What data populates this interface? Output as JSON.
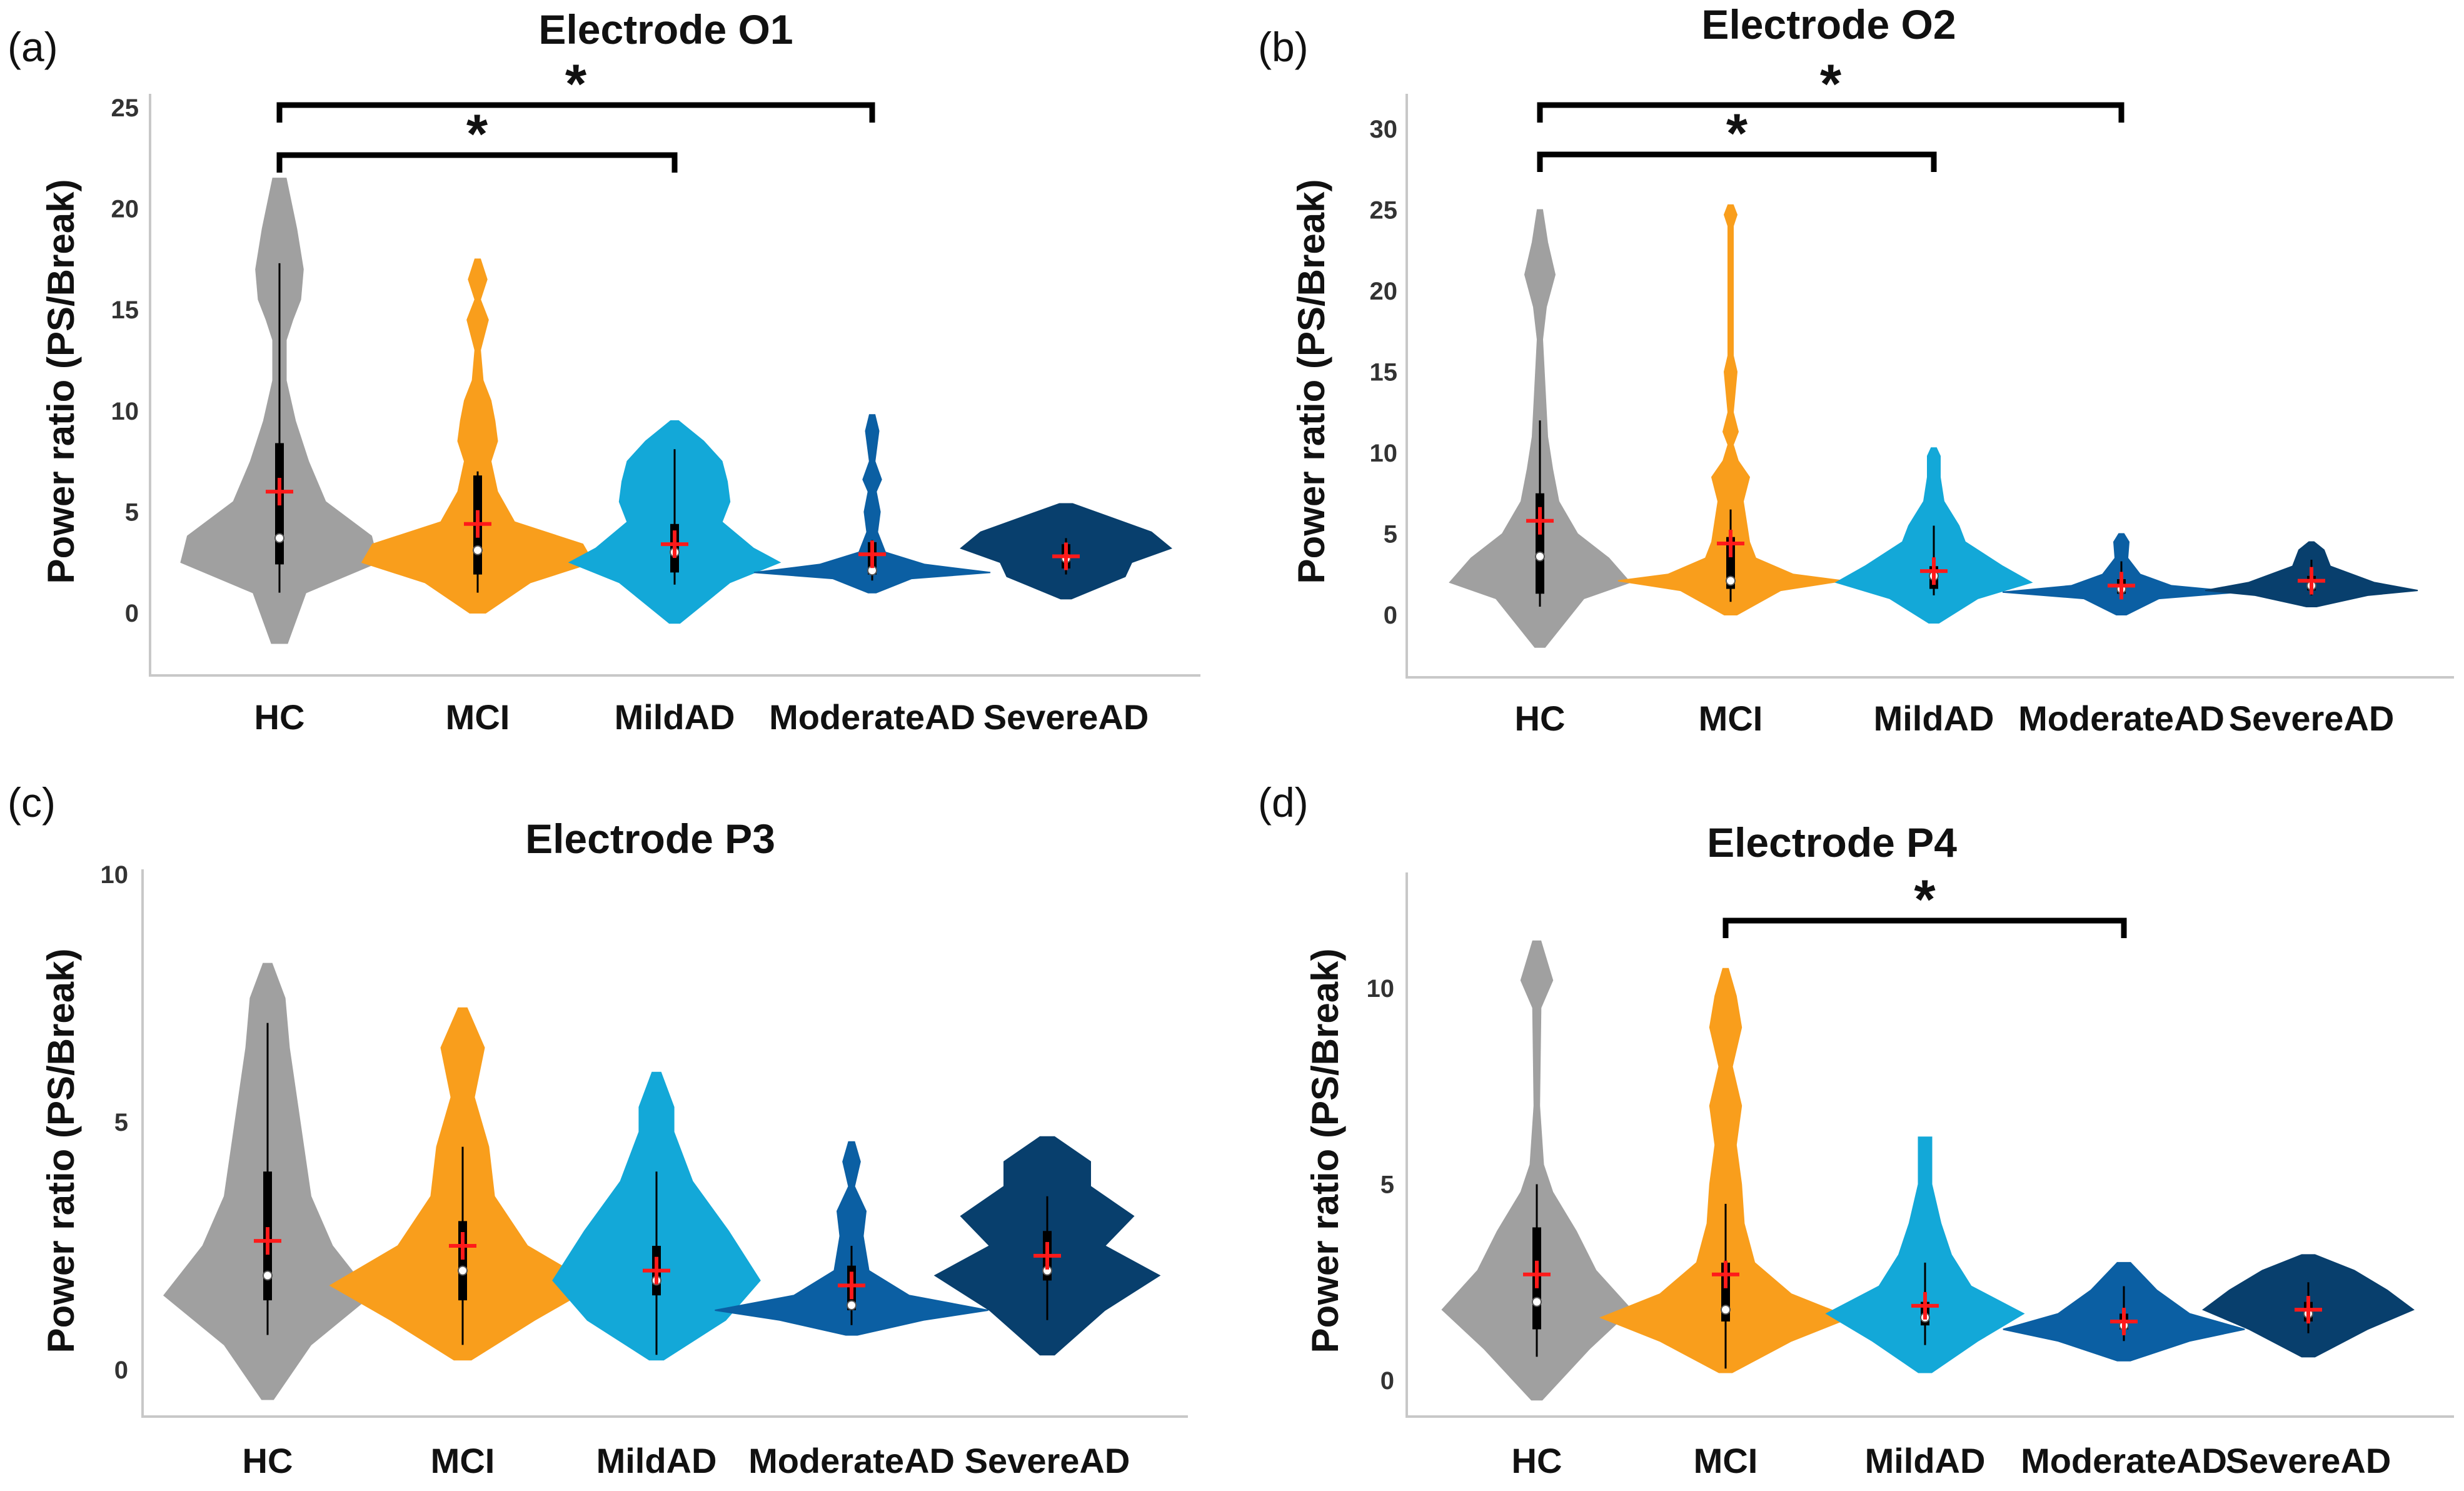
{
  "chart_data": [
    {
      "type": "violin",
      "panel_label": "(a)",
      "title": "Electrode O1",
      "ylabel": "Power ratio (PS/Break)",
      "ylim": [
        -3,
        25
      ],
      "yticks": [
        "0",
        "5",
        "10",
        "15",
        "20",
        "25"
      ],
      "ytick_values": [
        0,
        5,
        10,
        15,
        20,
        25
      ],
      "categories": [
        "HC",
        "MCI",
        "MildAD",
        "ModerateAD",
        "SevereAD"
      ],
      "colors": [
        "#a0a0a0",
        "#f99e1c",
        "#13a8d8",
        "#0b5fa3",
        "#083f6d"
      ],
      "means": [
        6.0,
        4.4,
        3.4,
        2.9,
        2.8
      ],
      "medians": [
        3.7,
        3.1,
        3.0,
        2.1,
        2.7
      ],
      "q1": [
        2.4,
        1.9,
        2.0,
        1.9,
        2.2
      ],
      "q3": [
        8.4,
        6.8,
        4.4,
        3.5,
        3.4
      ],
      "whisker_low": [
        1.0,
        1.0,
        1.4,
        1.6,
        1.9
      ],
      "whisker_high": [
        17.3,
        7.0,
        8.1,
        3.6,
        3.7
      ],
      "shapes": [
        [
          [
            -1.5,
            0.06
          ],
          [
            1.0,
            0.2
          ],
          [
            2.5,
            0.75
          ],
          [
            3.8,
            0.7
          ],
          [
            5.5,
            0.35
          ],
          [
            7.5,
            0.22
          ],
          [
            9.5,
            0.12
          ],
          [
            11.5,
            0.05
          ],
          [
            13.5,
            0.05
          ],
          [
            14.5,
            0.1
          ],
          [
            15.5,
            0.16
          ],
          [
            17.0,
            0.18
          ],
          [
            19.0,
            0.13
          ],
          [
            21.5,
            0.05
          ]
        ],
        [
          [
            0.0,
            0.06
          ],
          [
            1.5,
            0.4
          ],
          [
            2.5,
            0.88
          ],
          [
            3.4,
            0.8
          ],
          [
            4.5,
            0.28
          ],
          [
            6.0,
            0.15
          ],
          [
            7.5,
            0.1
          ],
          [
            8.5,
            0.15
          ],
          [
            9.5,
            0.13
          ],
          [
            10.5,
            0.1
          ],
          [
            11.5,
            0.04
          ],
          [
            13.0,
            0.02
          ],
          [
            14.5,
            0.08
          ],
          [
            15.5,
            0.02
          ],
          [
            16.5,
            0.07
          ],
          [
            17.5,
            0.02
          ]
        ],
        [
          [
            -0.5,
            0.04
          ],
          [
            1.5,
            0.42
          ],
          [
            2.5,
            0.8
          ],
          [
            3.2,
            0.6
          ],
          [
            4.5,
            0.36
          ],
          [
            5.5,
            0.42
          ],
          [
            6.5,
            0.4
          ],
          [
            7.5,
            0.36
          ],
          [
            8.5,
            0.22
          ],
          [
            9.5,
            0.03
          ]
        ],
        [
          [
            1.0,
            0.03
          ],
          [
            1.7,
            0.3
          ],
          [
            2.0,
            0.9
          ],
          [
            2.4,
            0.4
          ],
          [
            3.0,
            0.1
          ],
          [
            4.0,
            0.04
          ],
          [
            5.0,
            0.06
          ],
          [
            6.0,
            0.03
          ],
          [
            6.6,
            0.07
          ],
          [
            7.5,
            0.02
          ],
          [
            9.0,
            0.05
          ],
          [
            9.8,
            0.02
          ]
        ],
        [
          [
            0.7,
            0.04
          ],
          [
            1.8,
            0.45
          ],
          [
            2.5,
            0.5
          ],
          [
            3.2,
            0.8
          ],
          [
            4.0,
            0.65
          ],
          [
            4.7,
            0.35
          ],
          [
            5.4,
            0.05
          ]
        ]
      ],
      "significance": [
        {
          "from": "HC",
          "to": "MildAD",
          "label": "*"
        },
        {
          "from": "HC",
          "to": "ModerateAD",
          "label": "*"
        }
      ]
    },
    {
      "type": "violin",
      "panel_label": "(b)",
      "title": "Electrode O2",
      "ylabel": "Power ratio (PS/Break)",
      "ylim": [
        -4,
        30
      ],
      "yticks": [
        "0",
        "5",
        "10",
        "15",
        "20",
        "25",
        "30"
      ],
      "ytick_values": [
        0,
        5,
        10,
        15,
        20,
        25,
        30
      ],
      "categories": [
        "HC",
        "MCI",
        "MildAD",
        "ModerateAD",
        "SevereAD"
      ],
      "colors": [
        "#a0a0a0",
        "#f99e1c",
        "#13a8d8",
        "#0b5fa3",
        "#083f6d"
      ],
      "means": [
        5.8,
        4.4,
        2.7,
        1.8,
        2.1
      ],
      "medians": [
        3.6,
        2.1,
        2.4,
        1.6,
        1.8
      ],
      "q1": [
        1.3,
        1.6,
        1.6,
        1.3,
        1.5
      ],
      "q3": [
        7.5,
        4.8,
        3.0,
        2.2,
        2.4
      ],
      "whisker_low": [
        0.5,
        0.8,
        1.2,
        1.0,
        1.2
      ],
      "whisker_high": [
        12.0,
        6.5,
        5.5,
        3.3,
        3.4
      ],
      "shapes": [
        [
          [
            -2.0,
            0.04
          ],
          [
            1.0,
            0.35
          ],
          [
            2.0,
            0.72
          ],
          [
            3.5,
            0.55
          ],
          [
            5.0,
            0.3
          ],
          [
            7.0,
            0.15
          ],
          [
            9.0,
            0.1
          ],
          [
            11.0,
            0.06
          ],
          [
            14.0,
            0.04
          ],
          [
            17.0,
            0.02
          ],
          [
            19.0,
            0.05
          ],
          [
            21.0,
            0.12
          ],
          [
            23.0,
            0.06
          ],
          [
            25.0,
            0.02
          ]
        ],
        [
          [
            0.0,
            0.05
          ],
          [
            1.5,
            0.4
          ],
          [
            2.1,
            0.9
          ],
          [
            2.5,
            0.5
          ],
          [
            3.5,
            0.2
          ],
          [
            4.5,
            0.15
          ],
          [
            5.5,
            0.13
          ],
          [
            7.0,
            0.1
          ],
          [
            8.5,
            0.15
          ],
          [
            9.5,
            0.06
          ],
          [
            10.5,
            0.02
          ],
          [
            11.3,
            0.06
          ],
          [
            12.5,
            0.02
          ],
          [
            15.0,
            0.05
          ],
          [
            16.0,
            0.02
          ],
          [
            24.0,
            0.02
          ],
          [
            24.7,
            0.05
          ],
          [
            25.3,
            0.02
          ]
        ],
        [
          [
            -0.5,
            0.04
          ],
          [
            1.0,
            0.35
          ],
          [
            2.0,
            0.78
          ],
          [
            3.0,
            0.55
          ],
          [
            4.5,
            0.25
          ],
          [
            5.5,
            0.2
          ],
          [
            7.0,
            0.08
          ],
          [
            8.5,
            0.05
          ],
          [
            9.8,
            0.05
          ],
          [
            10.3,
            0.02
          ]
        ],
        [
          [
            0.0,
            0.04
          ],
          [
            1.0,
            0.3
          ],
          [
            1.4,
            0.95
          ],
          [
            1.8,
            0.4
          ],
          [
            2.5,
            0.15
          ],
          [
            3.5,
            0.05
          ],
          [
            4.5,
            0.06
          ],
          [
            5.0,
            0.02
          ]
        ],
        [
          [
            0.5,
            0.04
          ],
          [
            1.2,
            0.45
          ],
          [
            1.5,
            0.85
          ],
          [
            2.0,
            0.5
          ],
          [
            3.0,
            0.15
          ],
          [
            4.0,
            0.1
          ],
          [
            4.5,
            0.02
          ]
        ]
      ],
      "significance": [
        {
          "from": "HC",
          "to": "MildAD",
          "label": "*"
        },
        {
          "from": "HC",
          "to": "ModerateAD",
          "label": "*"
        }
      ]
    },
    {
      "type": "violin",
      "panel_label": "(c)",
      "title": "Electrode P3",
      "ylabel": "Power ratio (PS/Break)",
      "ylim": [
        -1,
        10
      ],
      "yticks": [
        "0",
        "5",
        "10"
      ],
      "ytick_values": [
        0,
        5,
        10
      ],
      "categories": [
        "HC",
        "MCI",
        "MildAD",
        "ModerateAD",
        "SevereAD"
      ],
      "colors": [
        "#a0a0a0",
        "#f99e1c",
        "#13a8d8",
        "#0b5fa3",
        "#083f6d"
      ],
      "means": [
        2.6,
        2.5,
        2.0,
        1.7,
        2.3
      ],
      "medians": [
        1.9,
        2.0,
        1.8,
        1.3,
        2.0
      ],
      "q1": [
        1.4,
        1.4,
        1.5,
        1.2,
        1.8
      ],
      "q3": [
        4.0,
        3.0,
        2.5,
        2.1,
        2.8
      ],
      "whisker_low": [
        0.7,
        0.5,
        0.3,
        0.9,
        1.0
      ],
      "whisker_high": [
        7.0,
        4.5,
        4.0,
        2.5,
        3.5
      ],
      "shapes": [
        [
          [
            -0.6,
            0.04
          ],
          [
            0.5,
            0.3
          ],
          [
            1.5,
            0.72
          ],
          [
            2.5,
            0.45
          ],
          [
            3.5,
            0.3
          ],
          [
            4.5,
            0.25
          ],
          [
            5.5,
            0.2
          ],
          [
            6.5,
            0.15
          ],
          [
            7.5,
            0.12
          ],
          [
            8.2,
            0.03
          ]
        ],
        [
          [
            0.2,
            0.06
          ],
          [
            1.0,
            0.5
          ],
          [
            1.7,
            0.92
          ],
          [
            2.5,
            0.45
          ],
          [
            3.5,
            0.22
          ],
          [
            4.5,
            0.18
          ],
          [
            5.5,
            0.08
          ],
          [
            6.5,
            0.15
          ],
          [
            7.3,
            0.03
          ]
        ],
        [
          [
            0.2,
            0.05
          ],
          [
            1.0,
            0.48
          ],
          [
            1.8,
            0.72
          ],
          [
            2.8,
            0.5
          ],
          [
            3.8,
            0.25
          ],
          [
            4.8,
            0.12
          ],
          [
            5.3,
            0.12
          ],
          [
            6.0,
            0.03
          ]
        ],
        [
          [
            0.7,
            0.04
          ],
          [
            1.0,
            0.5
          ],
          [
            1.2,
            0.95
          ],
          [
            1.5,
            0.4
          ],
          [
            2.0,
            0.12
          ],
          [
            2.7,
            0.08
          ],
          [
            3.2,
            0.1
          ],
          [
            3.7,
            0.02
          ],
          [
            4.2,
            0.06
          ],
          [
            4.6,
            0.02
          ]
        ],
        [
          [
            0.3,
            0.05
          ],
          [
            1.2,
            0.4
          ],
          [
            1.9,
            0.78
          ],
          [
            2.5,
            0.4
          ],
          [
            3.1,
            0.6
          ],
          [
            3.7,
            0.3
          ],
          [
            4.2,
            0.3
          ],
          [
            4.7,
            0.05
          ]
        ]
      ],
      "significance": []
    },
    {
      "type": "violin",
      "panel_label": "(d)",
      "title": "Electrode P4",
      "ylabel": "Power ratio (PS/Break)",
      "ylim": [
        -1,
        13
      ],
      "yticks": [
        "0",
        "5",
        "10"
      ],
      "ytick_values": [
        0,
        5,
        10
      ],
      "categories": [
        "HC",
        "MCI",
        "MildAD",
        "ModerateAD",
        "SevereAD"
      ],
      "colors": [
        "#a0a0a0",
        "#f99e1c",
        "#13a8d8",
        "#0b5fa3",
        "#083f6d"
      ],
      "means": [
        2.7,
        2.7,
        1.9,
        1.5,
        1.8
      ],
      "medians": [
        2.0,
        1.8,
        1.6,
        1.4,
        1.7
      ],
      "q1": [
        1.3,
        1.5,
        1.4,
        1.3,
        1.5
      ],
      "q3": [
        3.9,
        3.0,
        2.0,
        1.7,
        2.0
      ],
      "whisker_low": [
        0.6,
        0.3,
        0.9,
        1.0,
        1.2
      ],
      "whisker_high": [
        5.0,
        4.5,
        3.0,
        2.4,
        2.5
      ],
      "shapes": [
        [
          [
            -0.5,
            0.04
          ],
          [
            0.8,
            0.4
          ],
          [
            1.8,
            0.72
          ],
          [
            2.8,
            0.45
          ],
          [
            3.8,
            0.3
          ],
          [
            4.8,
            0.12
          ],
          [
            5.5,
            0.05
          ],
          [
            7.0,
            0.02
          ],
          [
            9.5,
            0.03
          ],
          [
            10.2,
            0.12
          ],
          [
            11.2,
            0.03
          ]
        ],
        [
          [
            0.2,
            0.05
          ],
          [
            1.0,
            0.5
          ],
          [
            1.6,
            0.95
          ],
          [
            2.2,
            0.5
          ],
          [
            3.0,
            0.22
          ],
          [
            4.0,
            0.14
          ],
          [
            5.0,
            0.12
          ],
          [
            6.0,
            0.08
          ],
          [
            7.0,
            0.12
          ],
          [
            8.0,
            0.05
          ],
          [
            9.0,
            0.12
          ],
          [
            9.8,
            0.08
          ],
          [
            10.5,
            0.02
          ]
        ],
        [
          [
            0.2,
            0.05
          ],
          [
            1.0,
            0.4
          ],
          [
            1.7,
            0.75
          ],
          [
            2.4,
            0.35
          ],
          [
            3.2,
            0.2
          ],
          [
            4.0,
            0.12
          ],
          [
            5.0,
            0.05
          ],
          [
            6.2,
            0.05
          ]
        ],
        [
          [
            0.5,
            0.05
          ],
          [
            1.0,
            0.5
          ],
          [
            1.3,
            0.92
          ],
          [
            1.7,
            0.5
          ],
          [
            2.3,
            0.25
          ],
          [
            3.0,
            0.05
          ]
        ],
        [
          [
            0.6,
            0.05
          ],
          [
            1.3,
            0.45
          ],
          [
            1.8,
            0.8
          ],
          [
            2.3,
            0.6
          ],
          [
            2.8,
            0.35
          ],
          [
            3.2,
            0.05
          ]
        ]
      ],
      "significance": [
        {
          "from": "MCI",
          "to": "ModerateAD",
          "label": "*"
        }
      ]
    }
  ]
}
